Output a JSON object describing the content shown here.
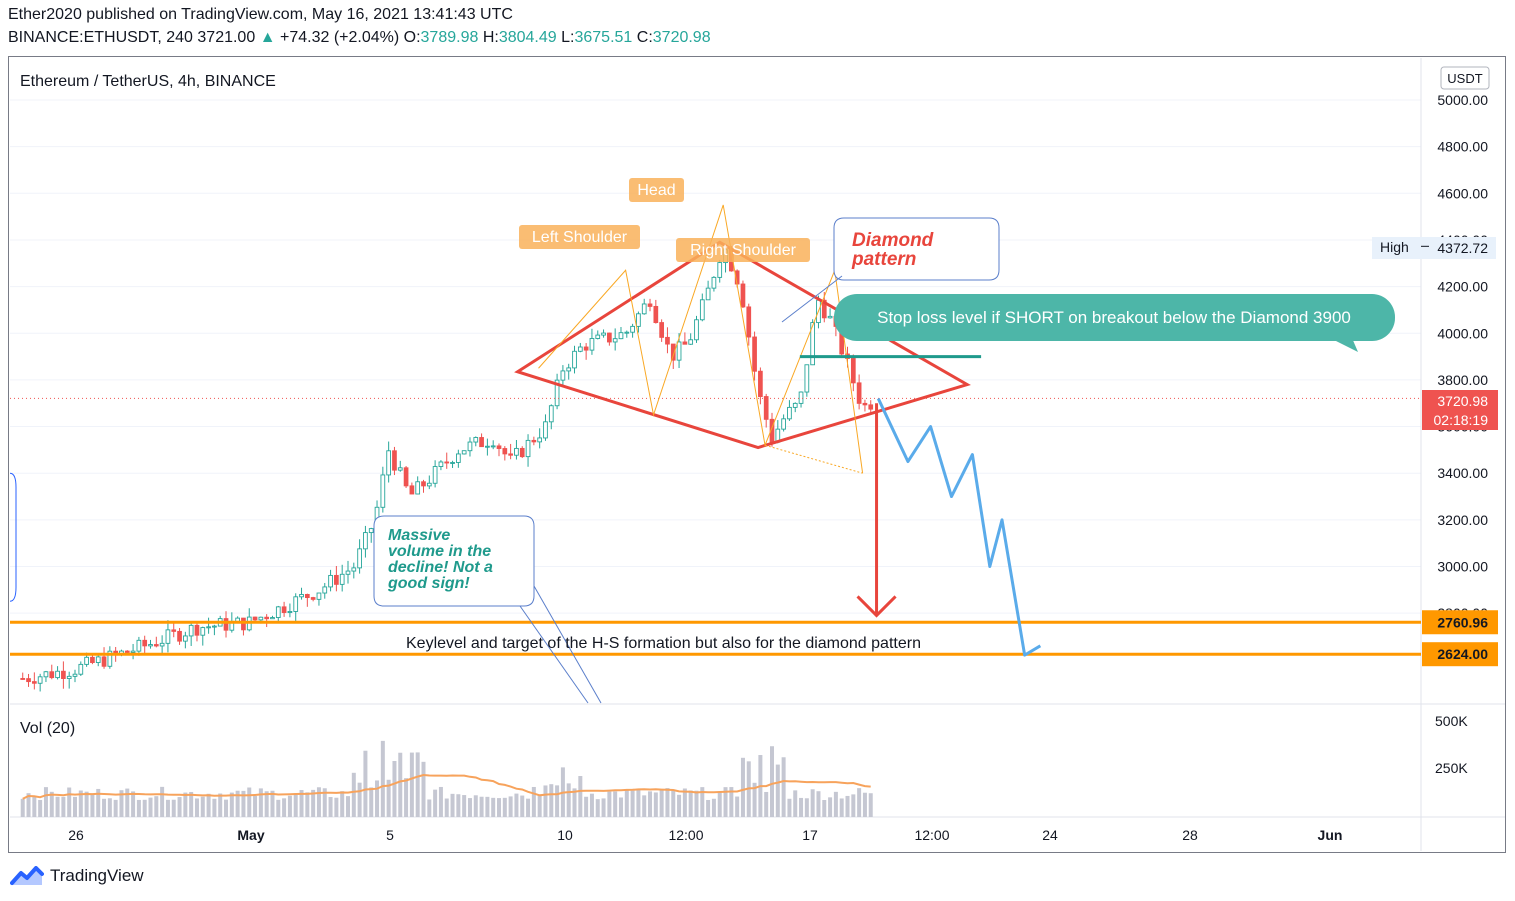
{
  "header": {
    "published": "Ether2020 published on TradingView.com, May 16, 2021 13:41:43 UTC",
    "symbol": "BINANCE:ETHUSDT, 240",
    "last": "3721.00",
    "arrow": "▲",
    "change": "+74.32 (+2.04%)",
    "o_label": "O:",
    "o": "3789.98",
    "h_label": "H:",
    "h": "3804.49",
    "l_label": "L:",
    "l": "3675.51",
    "c_label": "C:",
    "c": "3720.98"
  },
  "footer": {
    "brand": "TradingView"
  },
  "chart_data": {
    "type": "candlestick",
    "title": "Ethereum / TetherUS, 4h, BINANCE",
    "currency": "USDT",
    "volume_label": "Vol (20)",
    "y_ticks": [
      5000,
      4800,
      4600,
      4400,
      4200,
      4000,
      3800,
      3600,
      3400,
      3200,
      3000,
      2800
    ],
    "y_tick_labels": [
      "5000.00",
      "4800.00",
      "4600.00",
      "4400.00",
      "4200.00",
      "4000.00",
      "3800.00",
      "3600.00",
      "3400.00",
      "3200.00",
      "3000.00",
      "2800.00"
    ],
    "vol_ticks": [
      "500K",
      "250K"
    ],
    "x_ticks": [
      "26",
      "May",
      "5",
      "10",
      "12:00",
      "17",
      "12:00",
      "24",
      "28",
      "Jun"
    ],
    "ylim": [
      2520,
      5100
    ],
    "high": {
      "label": "High",
      "value": "4372.72"
    },
    "last_price": {
      "value": "3720.98",
      "countdown": "02:18:19",
      "color": "#ef5350"
    },
    "levels": [
      {
        "value": 2760.96,
        "label": "2760.96",
        "color": "#ff9800"
      },
      {
        "value": 2624.0,
        "label": "2624.00",
        "color": "#ff9800"
      }
    ],
    "stop_loss": 3900,
    "colors": {
      "up": "#26a69a",
      "down": "#ef5350",
      "pattern": "#e8453c",
      "projection": "#5aabea",
      "volume": "#c5c7d2",
      "ma": "#f7a35c"
    },
    "annotations": {
      "left_shoulder": "Left Shoulder",
      "head": "Head",
      "right_shoulder": "Right Shoulder",
      "diamond": "Diamond\npattern",
      "stop_loss": "Stop loss level if SHORT on breakout below the Diamond 3900",
      "volume_note": "Massive\nvolume in the\ndecline! Not a\ngood sign!",
      "keylevel": "Keylevel and target of the H-S formation but also for the diamond pattern"
    }
  }
}
